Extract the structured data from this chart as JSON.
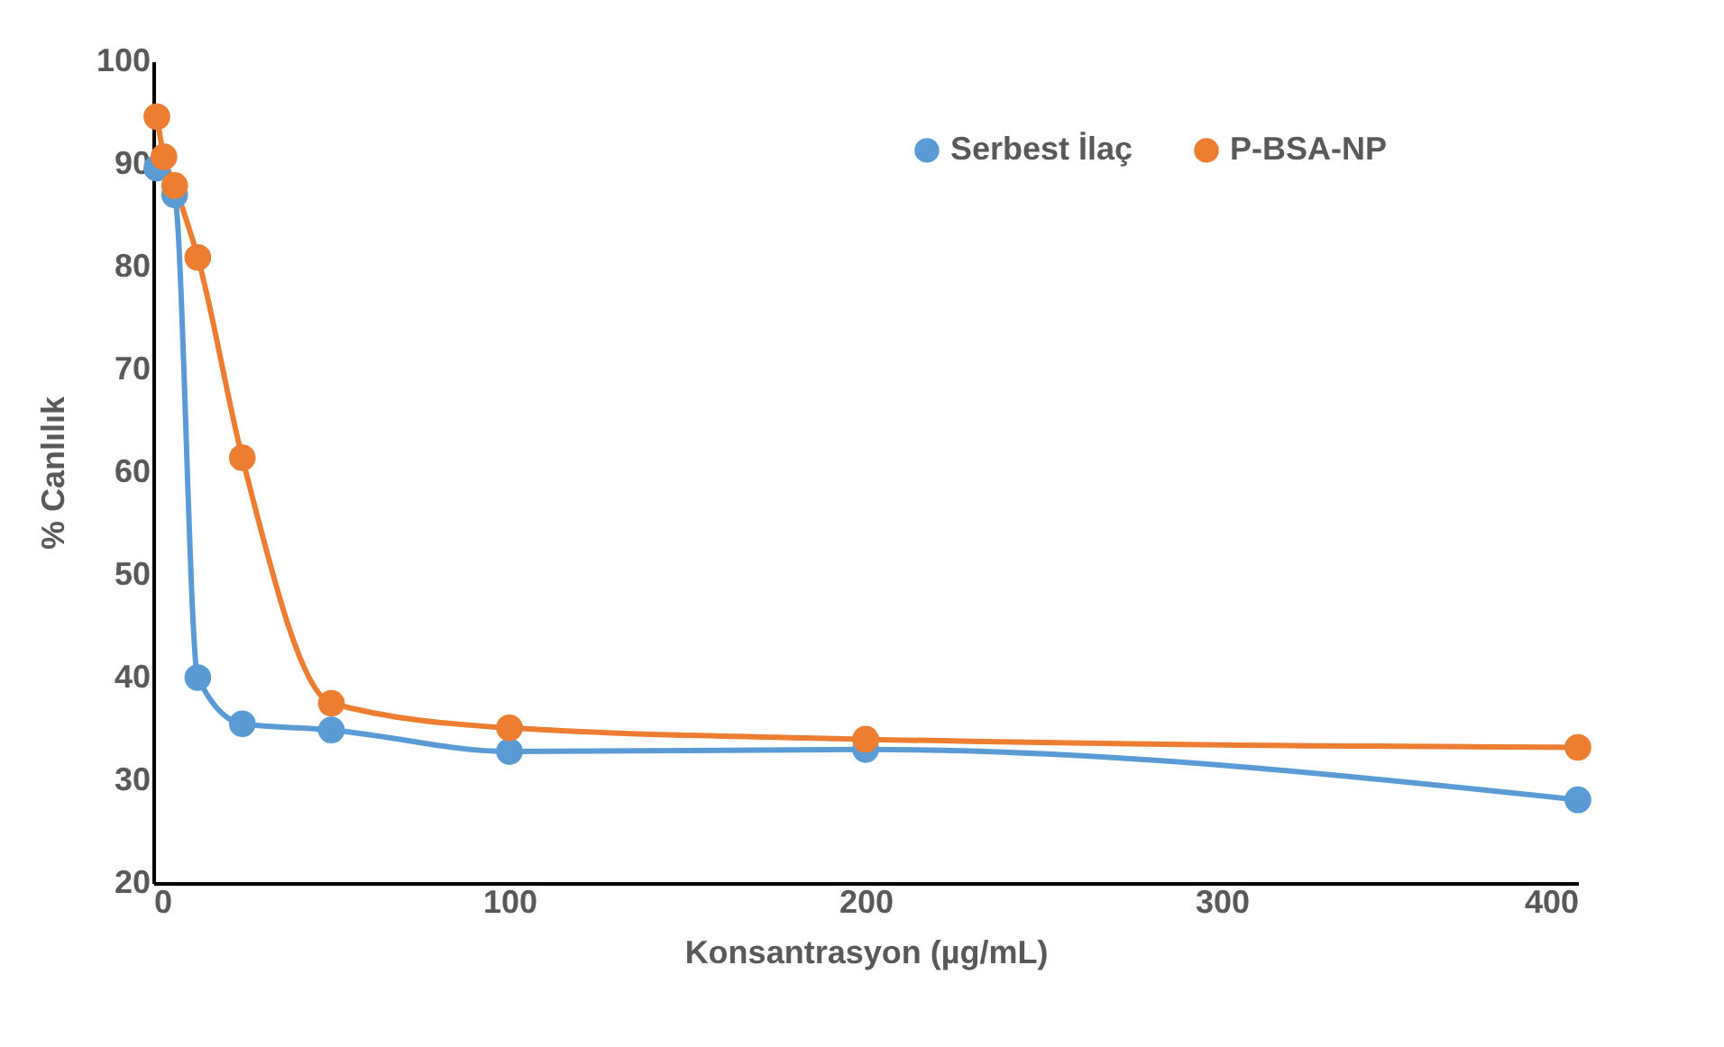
{
  "chart_data": {
    "type": "line",
    "xlabel": "Konsantrasyon (µg/mL)",
    "ylabel": "% Canlılık",
    "xlim": [
      0,
      400
    ],
    "xticks": [
      0,
      100,
      200,
      300,
      400
    ],
    "ylim": [
      20,
      100
    ],
    "yticks": [
      20,
      30,
      40,
      50,
      60,
      70,
      80,
      90,
      100
    ],
    "grid": false,
    "legend": "top",
    "marker": "circle",
    "line_style": "solid",
    "series": [
      {
        "name": "Serbest İlaç",
        "color": "#5b9bd5",
        "x": [
          1,
          6,
          12.5,
          25,
          50,
          100,
          200,
          400
        ],
        "values": [
          89.6,
          87,
          40,
          35.5,
          34.9,
          32.8,
          33,
          28.1
        ]
      },
      {
        "name": "P-BSA-NP",
        "color": "#ed7d31",
        "x": [
          1,
          3,
          6,
          12.5,
          25,
          50,
          100,
          200,
          400
        ],
        "values": [
          94.6,
          90.7,
          87.9,
          80.9,
          61.4,
          37.5,
          35.1,
          34,
          33.2
        ]
      }
    ]
  }
}
